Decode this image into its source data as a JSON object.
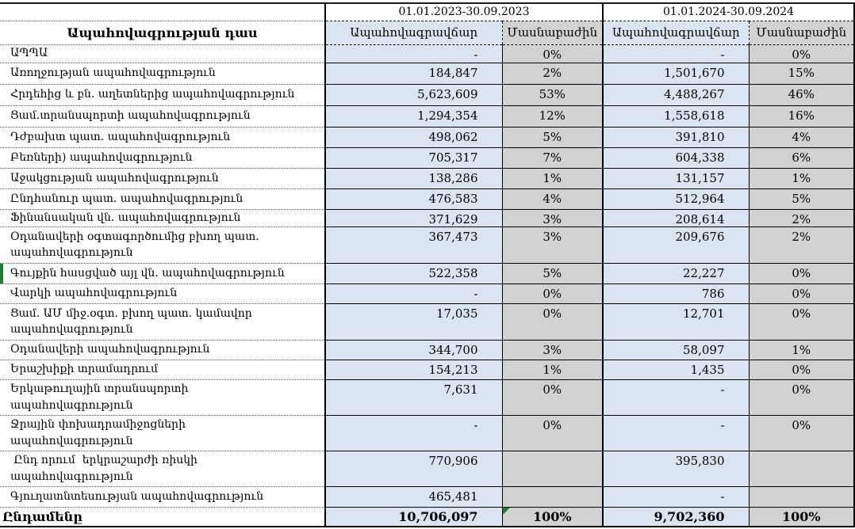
{
  "colors": {
    "premium_cell": "#dbe4f1",
    "share_cell": "#d2d2d2",
    "excel_green": "#1e7b34",
    "border": "#000000"
  },
  "header": {
    "class_column": "Ապահովագրության դաս",
    "period_2023": "01.01.2023-30.09.2023",
    "period_2024": "01.01.2024-30.09.2024",
    "premium_label": "Ապահովագրավճար",
    "share_label": "Մասնաբաժին"
  },
  "rows": [
    {
      "label": "ԱՊՊԱ",
      "p1": "-",
      "s1": "0%",
      "p2": "-",
      "s2": "0%"
    },
    {
      "label": "Առողջության ապահովագրություն",
      "p1": "184,847",
      "s1": "2%",
      "p2": "1,501,670",
      "s2": "15%"
    },
    {
      "label": "Հրդեհից և բն. աղետներից ապահովագրություն",
      "p1": "5,623,609",
      "s1": "53%",
      "p2": "4,488,267",
      "s2": "46%"
    },
    {
      "label": "Ցամ.տրանսպորտի ապահովագրություն",
      "p1": "1,294,354",
      "s1": "12%",
      "p2": "1,558,618",
      "s2": "16%"
    },
    {
      "label": "Դժբախտ պատ. ապահովագրություն",
      "p1": "498,062",
      "s1": "5%",
      "p2": "391,810",
      "s2": "4%"
    },
    {
      "label": "Բեռների) ապահովագրություն",
      "p1": "705,317",
      "s1": "7%",
      "p2": "604,338",
      "s2": "6%"
    },
    {
      "label": "Աջակցության ապահովագրություն",
      "p1": "138,286",
      "s1": "1%",
      "p2": "131,157",
      "s2": "1%"
    },
    {
      "label": "Ընդհանուր պատ. ապահովագրություն",
      "p1": "476,583",
      "s1": "4%",
      "p2": "512,964",
      "s2": "5%"
    },
    {
      "label": "Ֆինանսական վն. ապահովագրություն",
      "p1": "371,629",
      "s1": "3%",
      "p2": "208,614",
      "s2": "2%"
    },
    {
      "label": "Օդանավերի օգտագործումից բխող պատ.\nապահովագրություն",
      "p1": "367,473",
      "s1": "3%",
      "p2": "209,676",
      "s2": "2%"
    },
    {
      "label": "Գույքին հասցված այլ վն. ապահովագրություն",
      "p1": "522,358",
      "s1": "5%",
      "p2": "22,227",
      "s2": "0%",
      "green_bar": true
    },
    {
      "label": "Վարկի ապահովագրություն",
      "p1": "-",
      "s1": "0%",
      "p2": "786",
      "s2": "0%"
    },
    {
      "label": "Ցամ. ԱՄ միջ.օգտ. բխող պատ. կամավոր\nապահովագրություն",
      "p1": "17,035",
      "s1": "0%",
      "p2": "12,701",
      "s2": "0%"
    },
    {
      "label": "Օդանավերի ապահովագրություն",
      "p1": "344,700",
      "s1": "3%",
      "p2": "58,097",
      "s2": "1%"
    },
    {
      "label": "Երաշխիքի տրամադրում",
      "p1": "154,213",
      "s1": "1%",
      "p2": "1,435",
      "s2": "0%"
    },
    {
      "label": "Երկաթուղային տրանսպորտի\nապահովագրություն",
      "p1": "7,631",
      "s1": "0%",
      "p2": "-",
      "s2": "0%"
    },
    {
      "label": "Ջրային փոխադրամիջոցների\nապահովագրություն",
      "p1": "-",
      "s1": "0%",
      "p2": "-",
      "s2": "0%"
    },
    {
      "label": " Ընդ որում  երկրաշարժի ռիսկի\nապահովագրություն",
      "p1": "770,906",
      "s1": "",
      "p2": "395,830",
      "s2": ""
    },
    {
      "label": "Գյուղատնտեսության ապահովագրություն",
      "p1": "465,481",
      "s1": "",
      "p2": "-",
      "s2": ""
    }
  ],
  "total": {
    "label": "Ընդամենը",
    "p1": "10,706,097",
    "s1": "100%",
    "p2": "9,702,360",
    "s2": "100%",
    "error_flag_2023": true
  }
}
